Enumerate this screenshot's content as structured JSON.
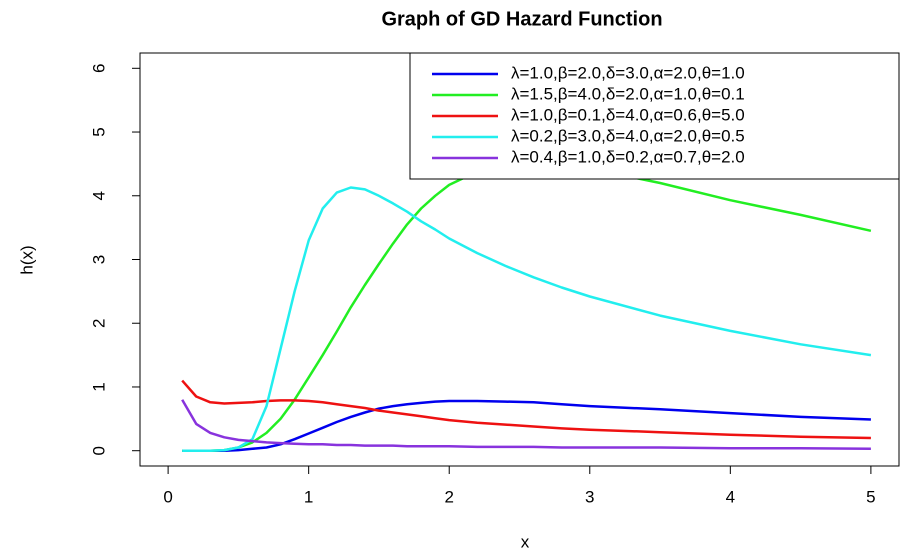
{
  "chart_data": {
    "type": "line",
    "title": "Graph of GD Hazard Function",
    "xlabel": "x",
    "ylabel": "h(x)",
    "x": [
      0.1,
      0.2,
      0.3,
      0.4,
      0.5,
      0.6,
      0.7,
      0.8,
      0.9,
      1.0,
      1.1,
      1.2,
      1.3,
      1.4,
      1.5,
      1.6,
      1.7,
      1.8,
      1.9,
      2.0,
      2.2,
      2.4,
      2.6,
      2.8,
      3.0,
      3.5,
      4.0,
      4.5,
      5.0
    ],
    "xlim": [
      -0.2,
      5.2
    ],
    "xticks": [
      0,
      1,
      2,
      3,
      4,
      5
    ],
    "ylim": [
      -0.24,
      6.24
    ],
    "yticks": [
      0,
      1,
      2,
      3,
      4,
      5,
      6
    ],
    "legend": "top-right",
    "series": [
      {
        "name": "λ=1.0,β=2.0,δ=3.0,α=2.0,θ=1.0",
        "color": "#0000ee",
        "values": [
          0,
          0,
          0,
          0,
          0.01,
          0.03,
          0.05,
          0.1,
          0.18,
          0.27,
          0.36,
          0.45,
          0.53,
          0.6,
          0.66,
          0.7,
          0.73,
          0.75,
          0.77,
          0.78,
          0.78,
          0.77,
          0.76,
          0.73,
          0.7,
          0.65,
          0.59,
          0.53,
          0.49
        ]
      },
      {
        "name": "λ=1.5,β=4.0,δ=2.0,α=1.0,θ=0.1",
        "color": "#22ee22",
        "values": [
          0,
          0,
          0,
          0.01,
          0.05,
          0.13,
          0.28,
          0.5,
          0.8,
          1.15,
          1.5,
          1.87,
          2.25,
          2.6,
          2.93,
          3.25,
          3.55,
          3.8,
          4.0,
          4.17,
          4.38,
          4.48,
          4.5,
          4.48,
          4.43,
          4.2,
          3.93,
          3.7,
          3.45
        ]
      },
      {
        "name": "λ=1.0,β=0.1,δ=4.0,α=0.6,θ=5.0",
        "color": "#ee1111",
        "values": [
          1.1,
          0.85,
          0.76,
          0.74,
          0.75,
          0.76,
          0.78,
          0.79,
          0.79,
          0.78,
          0.76,
          0.73,
          0.7,
          0.67,
          0.63,
          0.6,
          0.57,
          0.54,
          0.51,
          0.48,
          0.44,
          0.41,
          0.38,
          0.35,
          0.33,
          0.29,
          0.25,
          0.22,
          0.2
        ]
      },
      {
        "name": "λ=0.2,β=3.0,δ=4.0,α=2.0,θ=0.5",
        "color": "#22eeee",
        "values": [
          0,
          0,
          0,
          0.01,
          0.05,
          0.18,
          0.7,
          1.6,
          2.5,
          3.3,
          3.8,
          4.05,
          4.13,
          4.1,
          4.0,
          3.88,
          3.75,
          3.6,
          3.47,
          3.33,
          3.1,
          2.9,
          2.72,
          2.56,
          2.42,
          2.12,
          1.88,
          1.67,
          1.5
        ]
      },
      {
        "name": "λ=0.4,β=1.0,δ=0.2,α=0.7,θ=2.0",
        "color": "#8833dd",
        "values": [
          0.8,
          0.42,
          0.28,
          0.21,
          0.17,
          0.15,
          0.13,
          0.12,
          0.11,
          0.1,
          0.1,
          0.09,
          0.09,
          0.08,
          0.08,
          0.08,
          0.07,
          0.07,
          0.07,
          0.07,
          0.06,
          0.06,
          0.06,
          0.05,
          0.05,
          0.05,
          0.04,
          0.04,
          0.03
        ]
      }
    ]
  }
}
